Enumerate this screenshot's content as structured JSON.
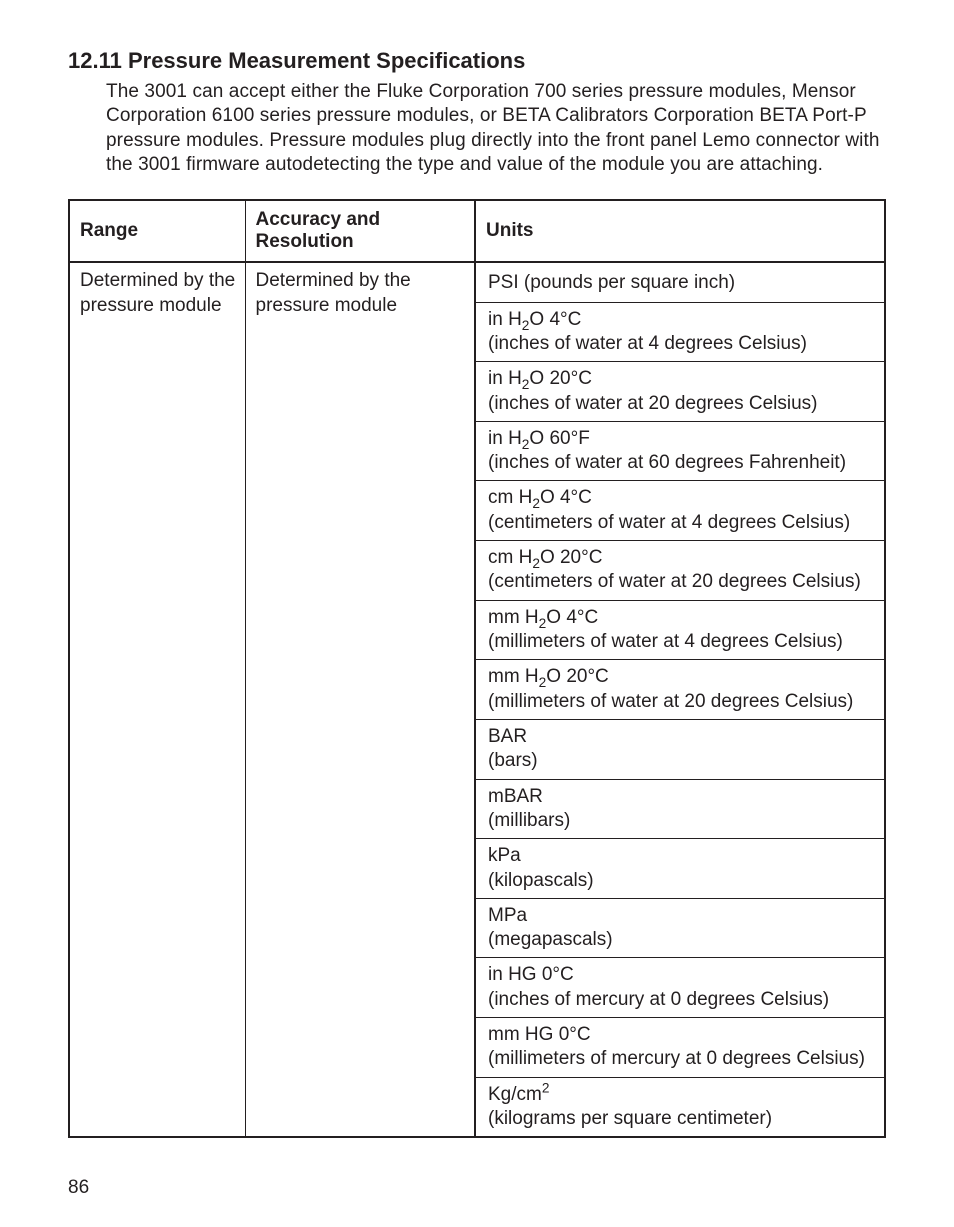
{
  "heading": "12.11  Pressure Measurement Specifications",
  "intro": "The 3001 can accept either the Fluke Corporation 700 series pressure modules, Mensor Corporation 6100 series pressure modules, or BETA Calibrators Corporation BETA Port-P pressure modules. Pressure modules plug directly into the front panel Lemo connector with the 3001 firmware autodetecting the type and value of the module you are attaching.",
  "table": {
    "headers": {
      "range": "Range",
      "accuracy": "Accuracy and Resolution",
      "units": "Units"
    },
    "row": {
      "range_l1": "Determined by the",
      "range_l2": "pressure module",
      "acc_l1": "Determined by the",
      "acc_l2": "pressure module"
    },
    "units": [
      {
        "main": "PSI (pounds per square inch)",
        "desc": ""
      },
      {
        "main": "in H₂O 4°C",
        "desc": "(inches of water at 4 degrees Celsius)"
      },
      {
        "main": "in H₂O 20°C",
        "desc": "(inches of water at 20 degrees Celsius)"
      },
      {
        "main": "in H₂O 60°F",
        "desc": "(inches of water at 60 degrees Fahrenheit)"
      },
      {
        "main": "cm H₂O 4°C",
        "desc": "(centimeters of water at 4 degrees Celsius)"
      },
      {
        "main": "cm H₂O 20°C",
        "desc": "(centimeters of water at 20 degrees Celsius)"
      },
      {
        "main": "mm H₂O 4°C",
        "desc": "(millimeters of water at 4 degrees Celsius)"
      },
      {
        "main": "mm H₂O 20°C",
        "desc": "(millimeters of water at 20 degrees Celsius)"
      },
      {
        "main": "BAR",
        "desc": "(bars)"
      },
      {
        "main": "mBAR",
        "desc": "(millibars)"
      },
      {
        "main": "kPa",
        "desc": "(kilopascals)"
      },
      {
        "main": "MPa",
        "desc": "(megapascals)"
      },
      {
        "main": "in HG 0°C",
        "desc": "(inches of mercury at 0 degrees Celsius)"
      },
      {
        "main": "mm HG 0°C",
        "desc": "(millimeters of mercury at 0 degrees Celsius)"
      },
      {
        "main": "Kg/cm²",
        "desc": "(kilograms per square centimeter)"
      }
    ]
  },
  "page_number": "86"
}
